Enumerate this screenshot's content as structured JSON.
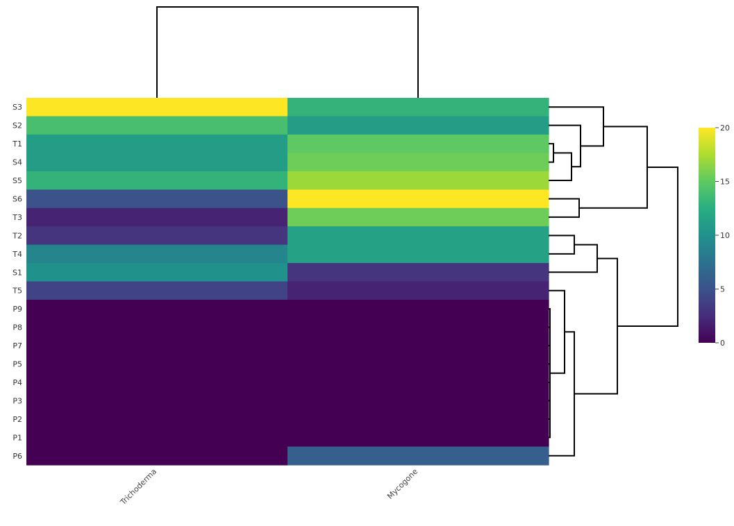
{
  "chart_data": {
    "type": "heatmap",
    "title": "",
    "xlabel": "",
    "ylabel": "",
    "columns": [
      "Trichoderma",
      "Mycogone"
    ],
    "rows": [
      "S3",
      "S2",
      "T1",
      "S4",
      "S5",
      "S6",
      "T3",
      "T2",
      "T4",
      "S1",
      "T5",
      "P9",
      "P8",
      "P7",
      "P5",
      "P4",
      "P3",
      "P2",
      "P1",
      "P6"
    ],
    "values": [
      [
        20,
        13
      ],
      [
        14,
        11
      ],
      [
        11,
        15
      ],
      [
        11,
        15.5
      ],
      [
        13,
        17
      ],
      [
        5,
        20
      ],
      [
        2,
        15.5
      ],
      [
        3,
        11.5
      ],
      [
        9,
        11.5
      ],
      [
        10,
        3
      ],
      [
        4,
        2
      ],
      [
        0,
        0
      ],
      [
        0,
        0
      ],
      [
        0,
        0
      ],
      [
        0,
        0
      ],
      [
        0,
        0
      ],
      [
        0,
        0
      ],
      [
        0,
        0
      ],
      [
        0,
        0
      ],
      [
        0,
        6
      ]
    ],
    "colorscale": "viridis",
    "zmin": 0,
    "zmax": 20,
    "colorbar_ticks": [
      "0",
      "5",
      "10",
      "15",
      "20"
    ],
    "column_dendrogram": true,
    "row_dendrogram": true
  }
}
